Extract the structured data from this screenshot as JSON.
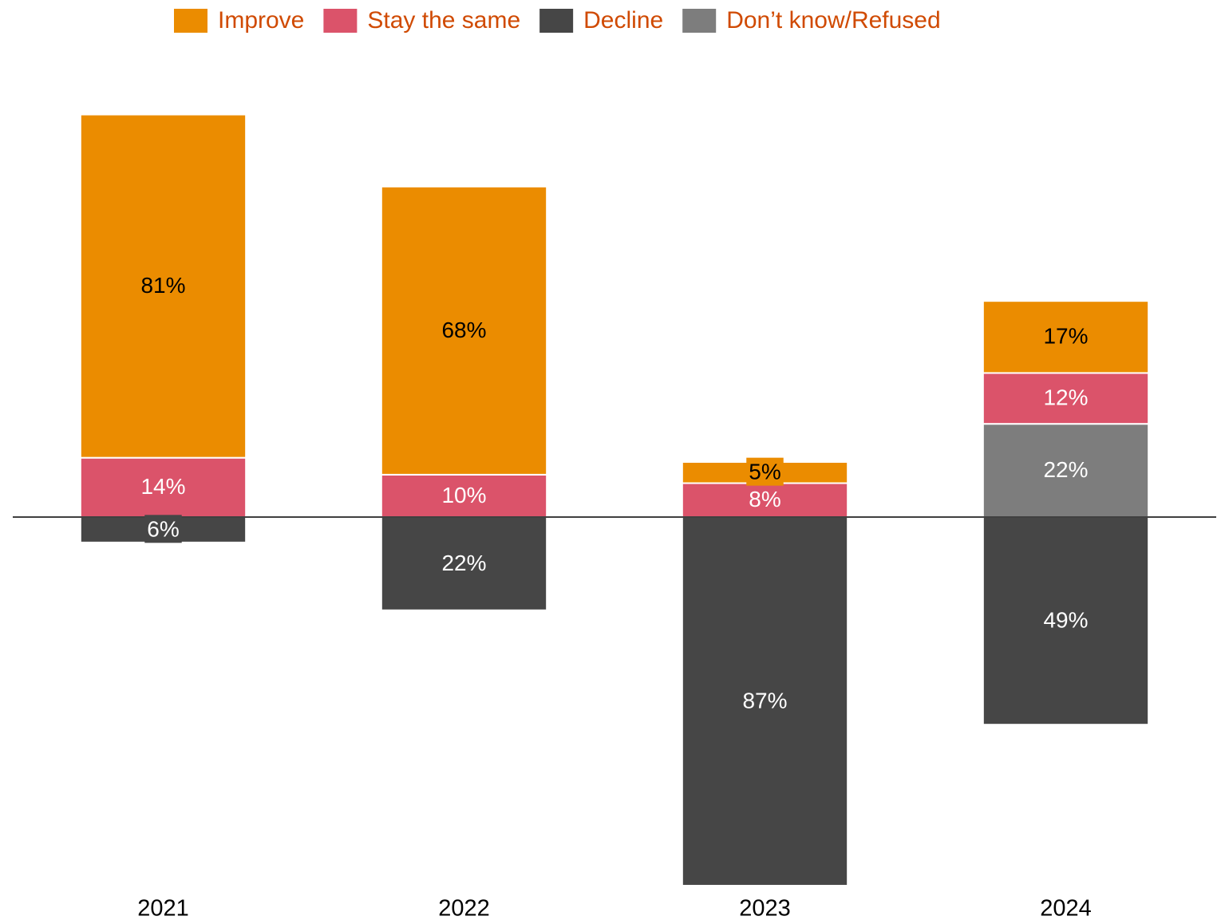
{
  "chart_data": {
    "type": "diverging_stacked_bar",
    "categories": [
      "2021",
      "2022",
      "2023",
      "2024"
    ],
    "series": [
      {
        "name": "Improve",
        "color": "#eb8c00",
        "direction": "up",
        "label_color": "#000000",
        "values": [
          81,
          68,
          5,
          17
        ],
        "value_labels": [
          "81%",
          "68%",
          "5%",
          "17%"
        ]
      },
      {
        "name": "Stay the same",
        "color": "#db536a",
        "direction": "up",
        "label_color": "#ffffff",
        "values": [
          14,
          10,
          8,
          12
        ],
        "value_labels": [
          "14%",
          "10%",
          "8%",
          "12%"
        ]
      },
      {
        "name": "Decline",
        "color": "#464646",
        "direction": "down",
        "label_color": "#ffffff",
        "values": [
          6,
          22,
          87,
          49
        ],
        "value_labels": [
          "6%",
          "22%",
          "87%",
          "49%"
        ]
      },
      {
        "name": "Don’t know/Refused",
        "color": "#7d7d7d",
        "direction": "up",
        "label_color": "#ffffff",
        "values": [
          null,
          null,
          null,
          22
        ],
        "value_labels": [
          null,
          null,
          null,
          "22%"
        ]
      }
    ],
    "stack_order_up": [
      3,
      1,
      0
    ],
    "legend_text_color": "#d04a02",
    "ylim": [
      -90,
      100
    ]
  }
}
